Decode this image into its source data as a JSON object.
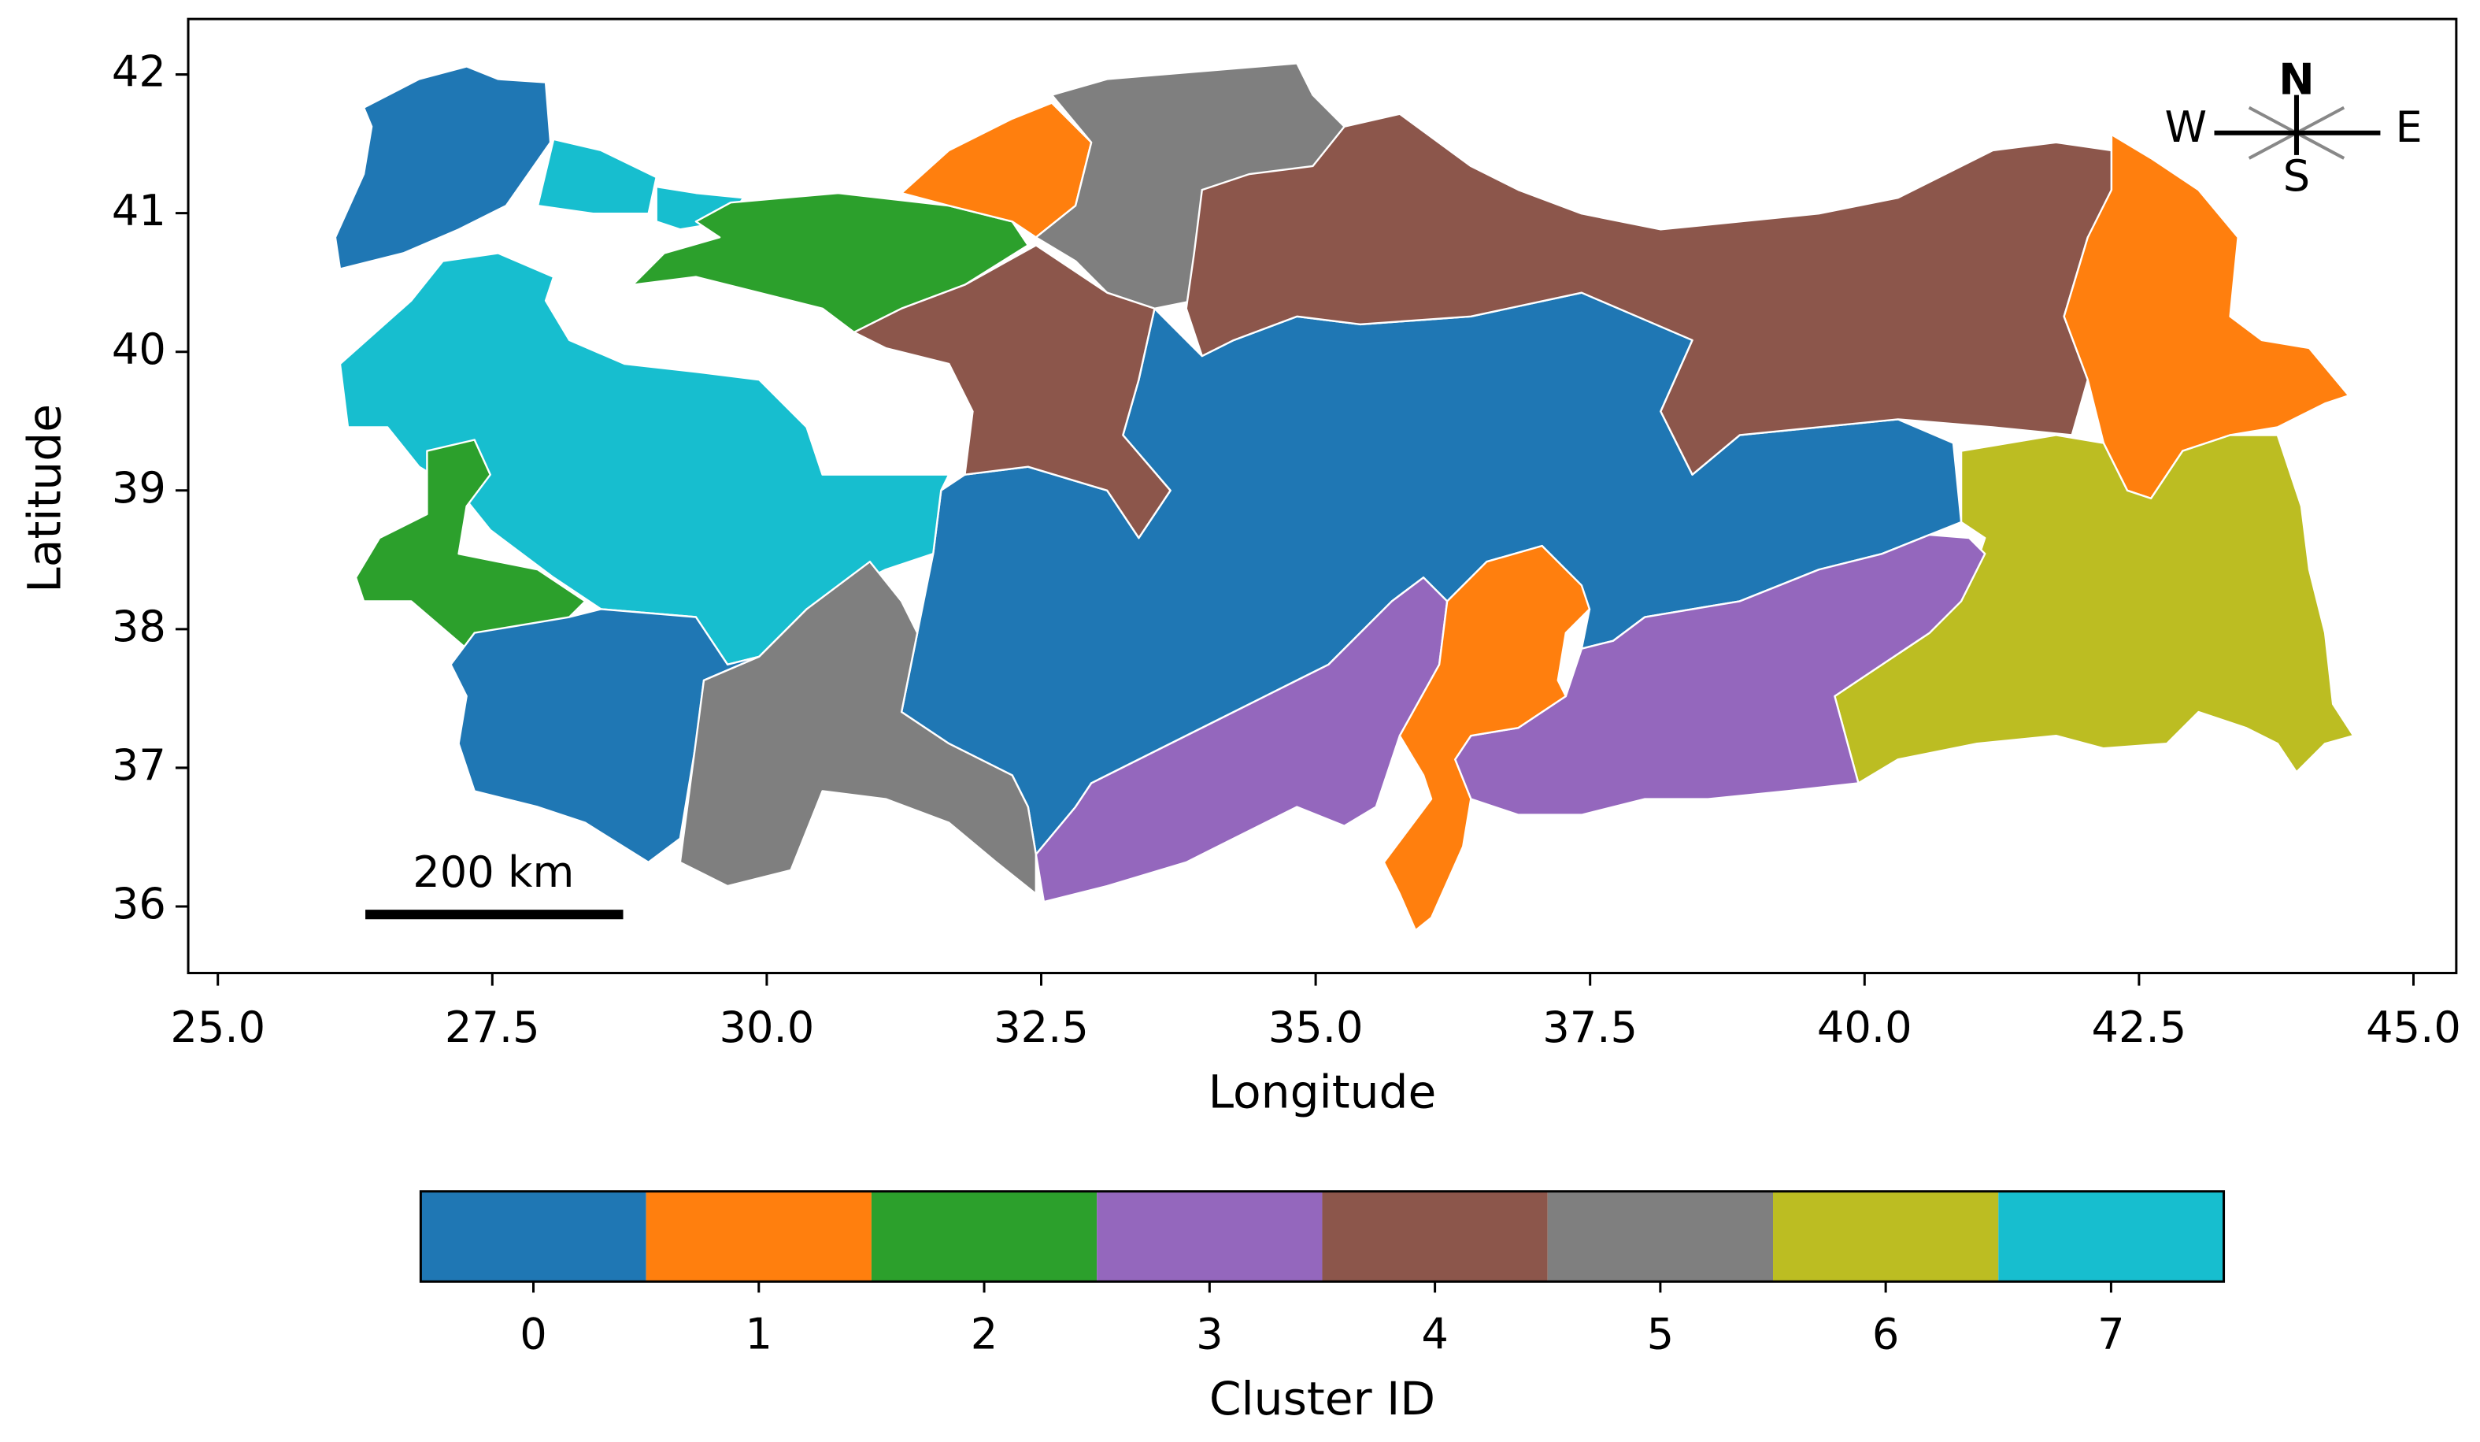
{
  "map": {
    "xlabel": "Longitude",
    "ylabel": "Latitude",
    "xlim": [
      24.73,
      45.39
    ],
    "ylim": [
      35.52,
      42.4
    ],
    "xticks": [
      {
        "value": 25,
        "label": "25.0"
      },
      {
        "value": 27.5,
        "label": "27.5"
      },
      {
        "value": 30,
        "label": "30.0"
      },
      {
        "value": 32.5,
        "label": "32.5"
      },
      {
        "value": 35,
        "label": "35.0"
      },
      {
        "value": 37.5,
        "label": "37.5"
      },
      {
        "value": 40,
        "label": "40.0"
      },
      {
        "value": 42.5,
        "label": "42.5"
      },
      {
        "value": 45,
        "label": "45.0"
      }
    ],
    "yticks": [
      36,
      37,
      38,
      39,
      40,
      41,
      42
    ],
    "regions": [
      0,
      0,
      7,
      7,
      2,
      1,
      5,
      4,
      4,
      1,
      6,
      3,
      3,
      1,
      7,
      2,
      0,
      5
    ]
  },
  "compass": {
    "n": "N",
    "s": "S",
    "w": "W",
    "e": "E"
  },
  "scale_bar": {
    "label": "200 km"
  },
  "colorbar": {
    "label": "Cluster ID",
    "ticks": [
      0,
      1,
      2,
      3,
      4,
      5,
      6,
      7
    ],
    "colors": [
      "#1f77b4",
      "#ff7f0e",
      "#2ca02c",
      "#9467bd",
      "#8c564b",
      "#7f7f7f",
      "#bcbd22",
      "#17becf"
    ]
  }
}
